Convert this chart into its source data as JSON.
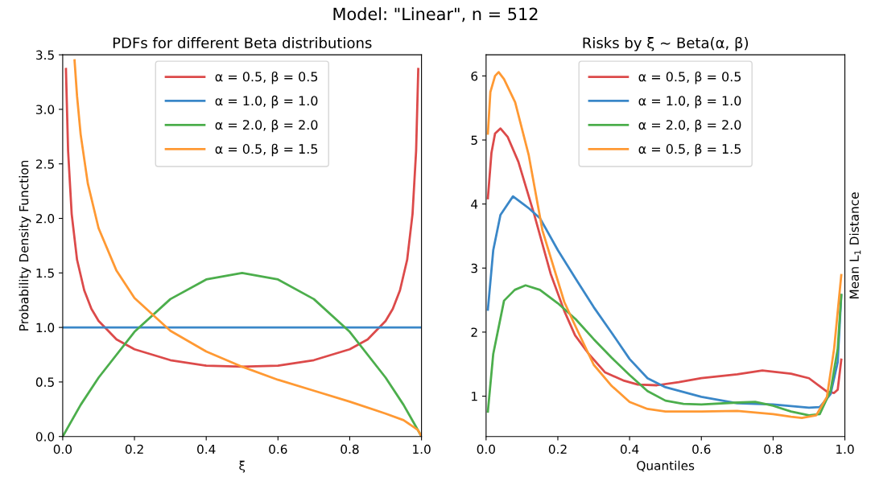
{
  "chart_data": [
    {
      "type": "line",
      "title": "PDFs for different Beta distributions",
      "xlabel": "ξ",
      "ylabel": "Probability Density Function",
      "annotations": [
        "Model: \"Linear\", n = 512"
      ],
      "xlim": [
        0,
        1
      ],
      "ylim": [
        0,
        3.5
      ],
      "xticks": [
        {
          "value": 0,
          "label": "0.0"
        },
        {
          "value": 0.2,
          "label": "0.2"
        },
        {
          "value": 0.4,
          "label": "0.4"
        },
        {
          "value": 0.6,
          "label": "0.6"
        },
        {
          "value": 0.8,
          "label": "0.8"
        },
        {
          "value": 1,
          "label": "1.0"
        }
      ],
      "yticks": [
        {
          "value": 0,
          "label": "0.0"
        },
        {
          "value": 0.5,
          "label": "0.5"
        },
        {
          "value": 1,
          "label": "1.0"
        },
        {
          "value": 1.5,
          "label": "1.5"
        },
        {
          "value": 2,
          "label": "2.0"
        },
        {
          "value": 2.5,
          "label": "2.5"
        },
        {
          "value": 3,
          "label": "3.0"
        },
        {
          "value": 3.5,
          "label": "3.5"
        }
      ],
      "legend": "top",
      "grid": false,
      "marker": "none",
      "line_style": "solid",
      "series": [
        {
          "name": "α = 0.5, β = 0.5",
          "color": "#dc4a4a",
          "x": [
            0.009,
            0.015,
            0.025,
            0.04,
            0.06,
            0.08,
            0.1,
            0.15,
            0.2,
            0.3,
            0.4,
            0.5,
            0.6,
            0.7,
            0.8,
            0.85,
            0.9,
            0.92,
            0.94,
            0.96,
            0.975,
            0.985,
            0.991
          ],
          "values": [
            3.37,
            2.62,
            2.04,
            1.62,
            1.34,
            1.17,
            1.06,
            0.89,
            0.8,
            0.7,
            0.65,
            0.64,
            0.65,
            0.7,
            0.8,
            0.89,
            1.06,
            1.17,
            1.34,
            1.62,
            2.04,
            2.62,
            3.37
          ]
        },
        {
          "name": "α = 1.0, β = 1.0",
          "color": "#3a87c8",
          "x": [
            0,
            1
          ],
          "values": [
            1,
            1
          ]
        },
        {
          "name": "α = 2.0, β = 2.0",
          "color": "#4cae4c",
          "x": [
            0,
            0.05,
            0.1,
            0.2,
            0.3,
            0.4,
            0.5,
            0.6,
            0.7,
            0.8,
            0.9,
            0.95,
            1
          ],
          "values": [
            0,
            0.29,
            0.54,
            0.96,
            1.26,
            1.44,
            1.5,
            1.44,
            1.26,
            0.96,
            0.54,
            0.29,
            0
          ]
        },
        {
          "name": "α = 0.5, β = 1.5",
          "color": "#ff9933",
          "x": [
            0.033,
            0.04,
            0.05,
            0.07,
            0.1,
            0.15,
            0.2,
            0.3,
            0.4,
            0.5,
            0.6,
            0.7,
            0.8,
            0.9,
            0.95,
            0.99,
            1
          ],
          "values": [
            3.45,
            3.12,
            2.77,
            2.32,
            1.91,
            1.52,
            1.27,
            0.97,
            0.78,
            0.64,
            0.52,
            0.42,
            0.32,
            0.21,
            0.15,
            0.06,
            0
          ]
        }
      ]
    },
    {
      "type": "line",
      "title": "Risks by ξ ~ Beta(α, β)",
      "xlabel": "Quantiles",
      "ylabel": "Mean L$_{1}$ Distance",
      "xlim": [
        0,
        1
      ],
      "ylim": [
        0.37,
        6.33
      ],
      "xticks": [
        {
          "value": 0,
          "label": "0.0"
        },
        {
          "value": 0.2,
          "label": "0.2"
        },
        {
          "value": 0.4,
          "label": "0.4"
        },
        {
          "value": 0.6,
          "label": "0.6"
        },
        {
          "value": 0.8,
          "label": "0.8"
        },
        {
          "value": 1,
          "label": "1.0"
        }
      ],
      "yticks": [
        1,
        2,
        3,
        4,
        5,
        6
      ],
      "legend": "top",
      "grid": false,
      "marker": "none",
      "line_style": "solid",
      "series": [
        {
          "name": "α = 0.5, β = 0.5",
          "color": "#dc4a4a",
          "x": [
            0.005,
            0.015,
            0.025,
            0.04,
            0.06,
            0.09,
            0.134,
            0.18,
            0.218,
            0.248,
            0.286,
            0.332,
            0.385,
            0.423,
            0.476,
            0.537,
            0.6,
            0.7,
            0.77,
            0.85,
            0.9,
            0.95,
            0.97,
            0.98,
            0.99
          ],
          "values": [
            4.09,
            4.8,
            5.1,
            5.18,
            5.05,
            4.66,
            3.84,
            2.91,
            2.33,
            1.95,
            1.66,
            1.37,
            1.24,
            1.18,
            1.17,
            1.22,
            1.28,
            1.34,
            1.4,
            1.35,
            1.28,
            1.07,
            1.05,
            1.1,
            1.57
          ]
        },
        {
          "name": "α = 1.0, β = 1.0",
          "color": "#3a87c8",
          "x": [
            0.005,
            0.02,
            0.04,
            0.075,
            0.12,
            0.15,
            0.2,
            0.25,
            0.3,
            0.35,
            0.4,
            0.45,
            0.5,
            0.6,
            0.7,
            0.8,
            0.9,
            0.93,
            0.96,
            0.98,
            0.99
          ],
          "values": [
            2.35,
            3.28,
            3.83,
            4.12,
            3.93,
            3.78,
            3.28,
            2.83,
            2.39,
            1.99,
            1.58,
            1.28,
            1.14,
            0.99,
            0.89,
            0.87,
            0.82,
            0.83,
            1.03,
            1.53,
            2.58
          ]
        },
        {
          "name": "α = 2.0, β = 2.0",
          "color": "#4cae4c",
          "x": [
            0.005,
            0.02,
            0.05,
            0.08,
            0.11,
            0.15,
            0.2,
            0.25,
            0.3,
            0.35,
            0.4,
            0.45,
            0.5,
            0.55,
            0.6,
            0.7,
            0.75,
            0.8,
            0.85,
            0.9,
            0.93,
            0.96,
            0.98,
            0.99
          ],
          "values": [
            0.76,
            1.66,
            2.49,
            2.66,
            2.73,
            2.66,
            2.45,
            2.2,
            1.89,
            1.6,
            1.33,
            1.08,
            0.93,
            0.88,
            0.87,
            0.9,
            0.91,
            0.85,
            0.76,
            0.7,
            0.72,
            1.08,
            1.74,
            2.58
          ]
        },
        {
          "name": "α = 0.5, β = 1.5",
          "color": "#ff9933",
          "x": [
            0.005,
            0.012,
            0.025,
            0.035,
            0.05,
            0.081,
            0.119,
            0.157,
            0.218,
            0.25,
            0.3,
            0.35,
            0.4,
            0.45,
            0.5,
            0.6,
            0.7,
            0.8,
            0.85,
            0.88,
            0.92,
            0.95,
            0.97,
            0.99
          ],
          "values": [
            5.1,
            5.75,
            6.0,
            6.06,
            5.95,
            5.59,
            4.76,
            3.59,
            2.47,
            2.08,
            1.49,
            1.16,
            0.91,
            0.8,
            0.76,
            0.76,
            0.77,
            0.72,
            0.68,
            0.66,
            0.7,
            0.99,
            1.74,
            2.89
          ]
        }
      ]
    }
  ]
}
